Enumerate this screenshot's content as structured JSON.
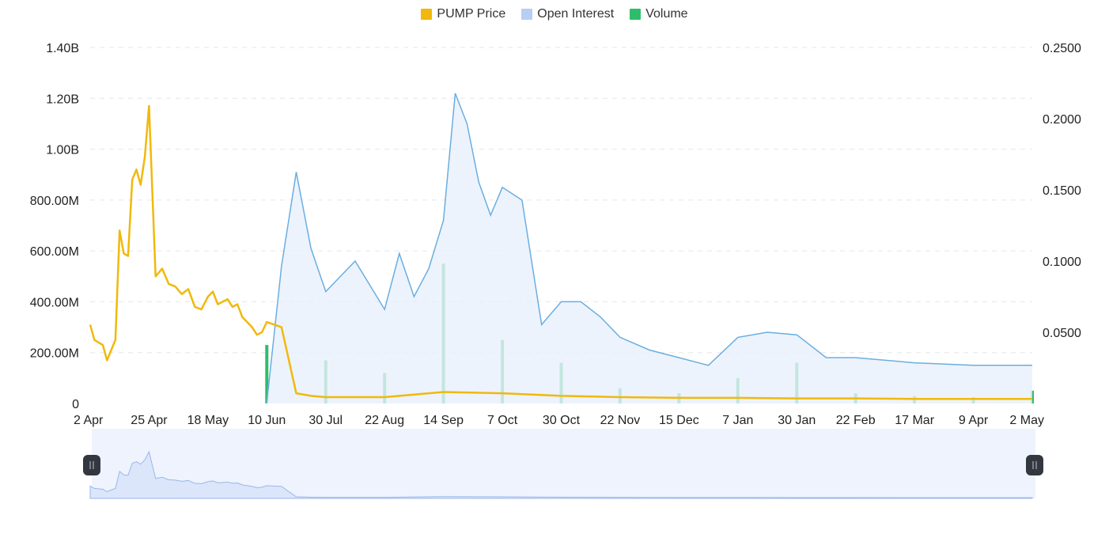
{
  "legend": [
    {
      "label": "PUMP Price",
      "color": "#F0B90B"
    },
    {
      "label": "Open Interest",
      "color": "#B7CEF5"
    },
    {
      "label": "Volume",
      "color": "#2EBD6B"
    }
  ],
  "chart_data": {
    "type": "line",
    "title": "",
    "x_ticks": [
      "2 Apr",
      "25 Apr",
      "18 May",
      "10 Jun",
      "30 Jul",
      "22 Aug",
      "14 Sep",
      "7 Oct",
      "30 Oct",
      "22 Nov",
      "15 Dec",
      "7 Jan",
      "30 Jan",
      "22 Feb",
      "17 Mar",
      "9 Apr",
      "2 May"
    ],
    "y_left_ticks": [
      "0",
      "200.00M",
      "400.00M",
      "600.00M",
      "800.00M",
      "1.00B",
      "1.20B",
      "1.40B"
    ],
    "y_right_ticks": [
      "0.0500",
      "0.1000",
      "0.1500",
      "0.2000",
      "0.2500"
    ],
    "y_left_range": [
      0,
      1400000000
    ],
    "y_right_range": [
      0,
      0.25
    ],
    "grid": true,
    "legend_position": "top-center",
    "series": [
      {
        "name": "PUMP Price",
        "axis": "left",
        "points": [
          [
            "2 Apr",
            310000000
          ],
          [
            "2 Apr",
            250000000
          ],
          [
            "2 Apr",
            240000000
          ],
          [
            "2 Apr",
            230000000
          ],
          [
            "2 Apr",
            170000000
          ],
          [
            "2 Apr",
            210000000
          ],
          [
            "2 Apr",
            250000000
          ],
          [
            "2 Apr",
            680000000
          ],
          [
            "2 Apr",
            590000000
          ],
          [
            "2 Apr",
            580000000
          ],
          [
            "2 Apr",
            880000000
          ],
          [
            "2 Apr",
            920000000
          ],
          [
            "2 Apr",
            860000000
          ],
          [
            "2 Apr",
            970000000
          ],
          [
            "25 Apr",
            1170000000
          ],
          [
            "25 Apr",
            500000000
          ],
          [
            "25 Apr",
            530000000
          ],
          [
            "25 Apr",
            470000000
          ],
          [
            "25 Apr",
            460000000
          ],
          [
            "25 Apr",
            430000000
          ],
          [
            "25 Apr",
            450000000
          ],
          [
            "25 Apr",
            380000000
          ],
          [
            "25 Apr",
            370000000
          ],
          [
            "18 May",
            420000000
          ],
          [
            "18 May",
            440000000
          ],
          [
            "18 May",
            390000000
          ],
          [
            "18 May",
            400000000
          ],
          [
            "18 May",
            410000000
          ],
          [
            "18 May",
            380000000
          ],
          [
            "18 May",
            390000000
          ],
          [
            "18 May",
            340000000
          ],
          [
            "18 May",
            320000000
          ],
          [
            "18 May",
            300000000
          ],
          [
            "18 May",
            270000000
          ],
          [
            "18 May",
            280000000
          ],
          [
            "10 Jun",
            320000000
          ],
          [
            "10 Jun",
            300000000
          ],
          [
            "10 Jun",
            40000000
          ],
          [
            "10 Jun",
            30000000
          ],
          [
            "30 Jul",
            25000000
          ],
          [
            "22 Aug",
            25000000
          ],
          [
            "14 Sep",
            45000000
          ],
          [
            "7 Oct",
            40000000
          ],
          [
            "30 Oct",
            30000000
          ],
          [
            "22 Nov",
            25000000
          ],
          [
            "15 Dec",
            22000000
          ],
          [
            "7 Jan",
            22000000
          ],
          [
            "30 Jan",
            20000000
          ],
          [
            "22 Feb",
            20000000
          ],
          [
            "17 Mar",
            18000000
          ],
          [
            "9 Apr",
            18000000
          ],
          [
            "2 May",
            18000000
          ]
        ]
      },
      {
        "name": "Open Interest",
        "axis": "left",
        "points": [
          [
            "10 Jun",
            5000000
          ],
          [
            "10 Jun",
            540000000
          ],
          [
            "10 Jun",
            910000000
          ],
          [
            "10 Jun",
            610000000
          ],
          [
            "30 Jul",
            440000000
          ],
          [
            "30 Jul",
            560000000
          ],
          [
            "22 Aug",
            370000000
          ],
          [
            "22 Aug",
            590000000
          ],
          [
            "22 Aug",
            420000000
          ],
          [
            "22 Aug",
            530000000
          ],
          [
            "14 Sep",
            720000000
          ],
          [
            "14 Sep",
            1220000000
          ],
          [
            "14 Sep",
            1100000000
          ],
          [
            "14 Sep",
            870000000
          ],
          [
            "14 Sep",
            740000000
          ],
          [
            "7 Oct",
            850000000
          ],
          [
            "7 Oct",
            800000000
          ],
          [
            "7 Oct",
            310000000
          ],
          [
            "30 Oct",
            400000000
          ],
          [
            "30 Oct",
            400000000
          ],
          [
            "30 Oct",
            340000000
          ],
          [
            "22 Nov",
            260000000
          ],
          [
            "22 Nov",
            210000000
          ],
          [
            "15 Dec",
            180000000
          ],
          [
            "15 Dec",
            150000000
          ],
          [
            "7 Jan",
            260000000
          ],
          [
            "7 Jan",
            280000000
          ],
          [
            "30 Jan",
            270000000
          ],
          [
            "30 Jan",
            180000000
          ],
          [
            "22 Feb",
            180000000
          ],
          [
            "17 Mar",
            160000000
          ],
          [
            "9 Apr",
            150000000
          ],
          [
            "2 May",
            150000000
          ]
        ]
      },
      {
        "name": "Volume",
        "axis": "left",
        "points": [
          [
            "10 Jun",
            230000000
          ],
          [
            "30 Jul",
            170000000
          ],
          [
            "22 Aug",
            120000000
          ],
          [
            "14 Sep",
            550000000
          ],
          [
            "7 Oct",
            250000000
          ],
          [
            "30 Oct",
            160000000
          ],
          [
            "22 Nov",
            60000000
          ],
          [
            "15 Dec",
            40000000
          ],
          [
            "7 Jan",
            100000000
          ],
          [
            "30 Jan",
            160000000
          ],
          [
            "22 Feb",
            40000000
          ],
          [
            "17 Mar",
            30000000
          ],
          [
            "9 Apr",
            25000000
          ],
          [
            "2 May",
            50000000
          ]
        ]
      }
    ]
  }
}
